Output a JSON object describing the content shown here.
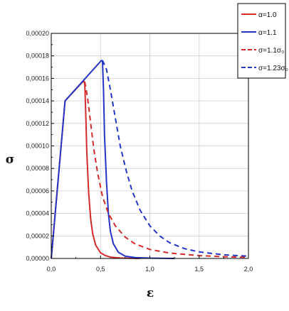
{
  "chart_data": {
    "type": "line",
    "xlabel": "ε",
    "ylabel": "σ",
    "xlim": [
      0,
      2.0
    ],
    "ylim": [
      0,
      0.0002
    ],
    "grid": true,
    "legend_position": "top-right",
    "x_ticks": [
      {
        "value": 0.0,
        "label": "0,0"
      },
      {
        "value": 0.5,
        "label": "0,5"
      },
      {
        "value": 1.0,
        "label": "1,0"
      },
      {
        "value": 1.5,
        "label": "1,5"
      },
      {
        "value": 2.0,
        "label": "2,0"
      }
    ],
    "y_ticks": [
      {
        "value": 0.0,
        "label": "0,00000"
      },
      {
        "value": 2e-05,
        "label": "0,00002"
      },
      {
        "value": 4e-05,
        "label": "0,00004"
      },
      {
        "value": 6e-05,
        "label": "0,00006"
      },
      {
        "value": 8e-05,
        "label": "0,00008"
      },
      {
        "value": 0.0001,
        "label": "0,00010"
      },
      {
        "value": 0.00012,
        "label": "0,00012"
      },
      {
        "value": 0.00014,
        "label": "0,00014"
      },
      {
        "value": 0.00016,
        "label": "0,00016"
      },
      {
        "value": 0.00018,
        "label": "0,00018"
      },
      {
        "value": 0.0002,
        "label": "0,00020"
      }
    ],
    "series": [
      {
        "name": "α=1.0",
        "color": "#d42a2a",
        "style": "solid",
        "x": [
          0.0,
          0.14,
          0.33,
          0.34,
          0.35,
          0.36,
          0.38,
          0.4,
          0.42,
          0.45,
          0.5,
          0.55,
          0.6,
          0.7,
          0.9
        ],
        "y": [
          0.0,
          0.00014,
          0.000158,
          0.000155,
          0.000128,
          9.5e-05,
          5.8e-05,
          3.5e-05,
          2.2e-05,
          1.2e-05,
          5e-06,
          2.5e-06,
          1.2e-06,
          4e-07,
          0.0
        ]
      },
      {
        "name": "α=1.1",
        "color": "#2535c8",
        "style": "solid",
        "x": [
          0.0,
          0.14,
          0.51,
          0.52,
          0.53,
          0.54,
          0.56,
          0.58,
          0.6,
          0.63,
          0.68,
          0.75,
          0.85,
          1.0,
          1.25
        ],
        "y": [
          0.0,
          0.00014,
          0.000176,
          0.000175,
          0.00015,
          0.00011,
          6.8e-05,
          4e-05,
          2.4e-05,
          1.3e-05,
          5.5e-06,
          2e-06,
          8e-07,
          3e-07,
          0.0
        ]
      },
      {
        "name": "σ=1.1σ₀",
        "color": "#d42a2a",
        "style": "dashed",
        "x": [
          0.34,
          0.37,
          0.4,
          0.43,
          0.47,
          0.52,
          0.58,
          0.65,
          0.75,
          0.85,
          1.0,
          1.2,
          1.5,
          1.8,
          2.0
        ],
        "y": [
          0.000157,
          0.000142,
          0.00012,
          9.8e-05,
          7.6e-05,
          5.5e-05,
          4e-05,
          2.9e-05,
          1.9e-05,
          1.3e-05,
          8e-06,
          4.8e-06,
          2.5e-06,
          1.4e-06,
          1e-06
        ]
      },
      {
        "name": "σ=1.23σ₀",
        "color": "#2535c8",
        "style": "dashed",
        "x": [
          0.52,
          0.56,
          0.6,
          0.65,
          0.7,
          0.76,
          0.82,
          0.9,
          1.0,
          1.1,
          1.2,
          1.35,
          1.5,
          1.75,
          2.0
        ],
        "y": [
          0.000176,
          0.000168,
          0.00015,
          0.000125,
          0.0001,
          7.8e-05,
          6e-05,
          4.3e-05,
          2.9e-05,
          2e-05,
          1.4e-05,
          8.8e-06,
          5.8e-06,
          3.2e-06,
          2e-06
        ]
      }
    ],
    "legend": [
      {
        "label": "α=1.0",
        "color": "#d42a2a",
        "style": "solid"
      },
      {
        "label": "α=1.1",
        "color": "#2535c8",
        "style": "solid"
      },
      {
        "label": "σ=1.1σ₀",
        "color": "#d42a2a",
        "style": "dashed"
      },
      {
        "label": "σ=1.23σ₀",
        "color": "#2535c8",
        "style": "dashed"
      }
    ]
  }
}
